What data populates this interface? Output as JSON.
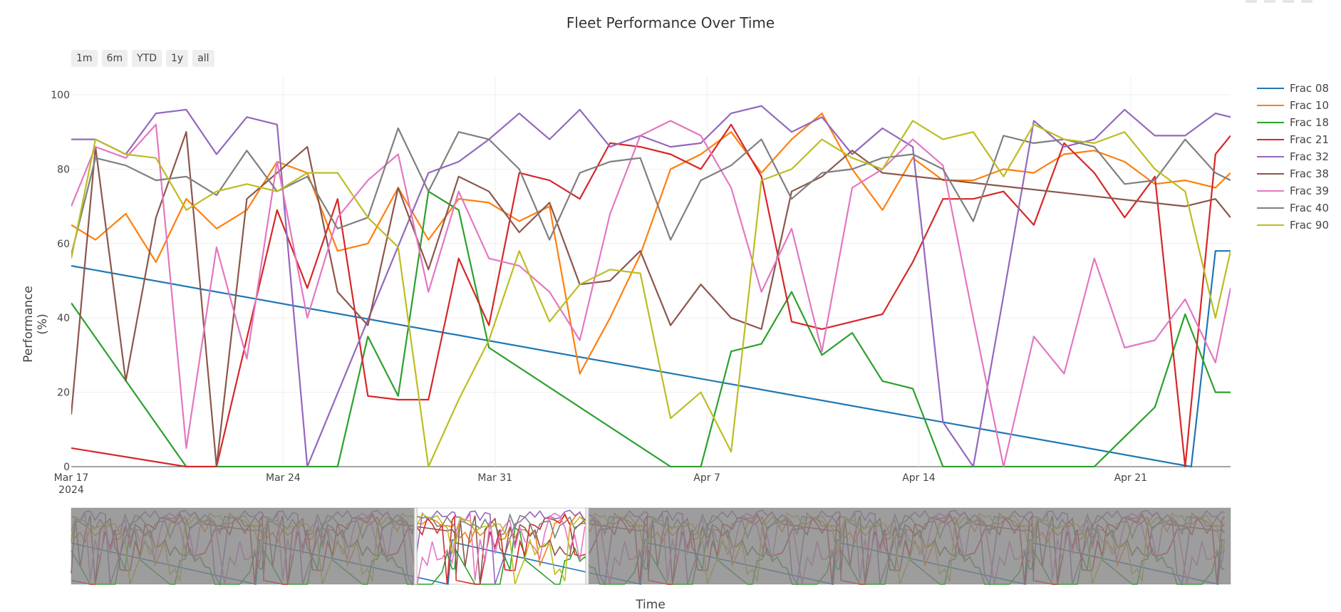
{
  "chart_data": {
    "type": "line",
    "title": "Fleet Performance Over Time",
    "xlabel": "Time",
    "ylabel": "Performance (%)",
    "ylim": [
      0,
      100
    ],
    "y_ticks": [
      "0",
      "20",
      "40",
      "60",
      "80",
      "100"
    ],
    "x_ticks": [
      "Mar 17",
      "Mar 24",
      "Mar 31",
      "Apr 7",
      "Apr 14",
      "Apr 21"
    ],
    "x_year_label": "2024",
    "x_range_days": [
      0,
      38.3
    ],
    "range_buttons": [
      "1m",
      "6m",
      "YTD",
      "1y",
      "all"
    ],
    "grid": true,
    "legend_position": "right",
    "series": [
      {
        "name": "Frac 08",
        "color": "#1f77b4",
        "x": [
          0,
          37,
          37.8,
          38.3
        ],
        "y": [
          54,
          0,
          58,
          58
        ]
      },
      {
        "name": "Frac 10",
        "color": "#ff7f0e",
        "x": [
          0,
          0.8,
          1.8,
          2.8,
          3.8,
          4.8,
          5.8,
          6.8,
          7.8,
          8.8,
          9.8,
          10.8,
          11.8,
          12.8,
          13.8,
          14.8,
          15.8,
          16.8,
          17.8,
          18.8,
          19.8,
          20.8,
          21.8,
          22.8,
          23.8,
          24.8,
          25.8,
          26.8,
          27.8,
          28.8,
          29.8,
          30.8,
          31.8,
          32.8,
          33.8,
          34.8,
          35.8,
          36.8,
          37.8,
          38.3
        ],
        "y": [
          65,
          61,
          68,
          55,
          72,
          64,
          69,
          82,
          79,
          58,
          60,
          75,
          61,
          72,
          71,
          66,
          70,
          25,
          40,
          57,
          80,
          84,
          90,
          79,
          88,
          95,
          80,
          69,
          83,
          77,
          77,
          80,
          79,
          84,
          85,
          82,
          76,
          77,
          75,
          79
        ]
      },
      {
        "name": "Frac 18",
        "color": "#2ca02c",
        "x": [
          0,
          3.8,
          7.8,
          8.8,
          9.8,
          10.8,
          11.8,
          12.8,
          13.8,
          19.8,
          20.8,
          21.8,
          22.8,
          23.8,
          24.8,
          25.8,
          26.8,
          27.8,
          28.8,
          33.8,
          34.8,
          35.8,
          36.8,
          37.8,
          38.3
        ],
        "y": [
          44,
          0,
          0,
          0,
          35,
          19,
          74,
          69,
          32,
          0,
          0,
          31,
          33,
          47,
          30,
          36,
          23,
          21,
          0,
          0,
          8,
          16,
          41,
          20,
          20
        ]
      },
      {
        "name": "Frac 21",
        "color": "#d62728",
        "x": [
          0,
          3.8,
          4.8,
          6.8,
          7.8,
          8.8,
          9.8,
          10.8,
          11.8,
          12.8,
          13.8,
          14.8,
          15.8,
          16.8,
          17.8,
          18.8,
          19.8,
          20.8,
          21.8,
          22.8,
          23.8,
          24.8,
          25.8,
          26.8,
          27.8,
          28.8,
          29.8,
          30.8,
          31.8,
          32.8,
          33.8,
          34.8,
          35.8,
          36.8,
          37.8,
          38.3
        ],
        "y": [
          5,
          0,
          0,
          69,
          48,
          72,
          19,
          18,
          18,
          56,
          38,
          79,
          77,
          72,
          87,
          86,
          84,
          80,
          92,
          78,
          39,
          37,
          39,
          41,
          55,
          72,
          72,
          74,
          65,
          87,
          79,
          67,
          78,
          0,
          84,
          89
        ]
      },
      {
        "name": "Frac 32",
        "color": "#9467bd",
        "x": [
          0,
          0.8,
          1.8,
          2.8,
          3.8,
          4.8,
          5.8,
          6.8,
          7.8,
          11.8,
          12.8,
          13.8,
          14.8,
          15.8,
          16.8,
          17.8,
          18.8,
          19.8,
          20.8,
          21.8,
          22.8,
          23.8,
          24.8,
          25.8,
          26.8,
          27.8,
          28.8,
          29.8,
          30.8,
          31.8,
          32.8,
          33.8,
          34.8,
          35.8,
          36.8,
          37.8,
          38.3
        ],
        "y": [
          88,
          88,
          84,
          95,
          96,
          84,
          94,
          92,
          0,
          79,
          82,
          88,
          95,
          88,
          96,
          86,
          89,
          86,
          87,
          95,
          97,
          90,
          94,
          84,
          91,
          86,
          12,
          0,
          46,
          93,
          86,
          88,
          96,
          89,
          89,
          95,
          94
        ]
      },
      {
        "name": "Frac 38",
        "color": "#8c564b",
        "x": [
          0,
          0.8,
          1.8,
          2.8,
          3.8,
          4.8,
          5.8,
          6.8,
          7.8,
          8.8,
          9.8,
          10.8,
          11.8,
          12.8,
          13.8,
          14.8,
          15.8,
          16.8,
          17.8,
          18.8,
          19.8,
          20.8,
          21.8,
          22.8,
          23.8,
          24.8,
          25.8,
          26.8,
          36.8,
          37.8,
          38.3
        ],
        "y": [
          14,
          86,
          23,
          67,
          90,
          0,
          72,
          79,
          86,
          47,
          38,
          75,
          53,
          78,
          74,
          63,
          71,
          49,
          50,
          58,
          38,
          49,
          40,
          37,
          74,
          78,
          85,
          79,
          70,
          72,
          67
        ]
      },
      {
        "name": "Frac 39",
        "color": "#e377c2",
        "x": [
          0,
          0.8,
          1.8,
          2.8,
          3.8,
          4.8,
          5.8,
          6.8,
          7.8,
          8.8,
          9.8,
          10.8,
          11.8,
          12.8,
          13.8,
          14.8,
          15.8,
          16.8,
          17.8,
          18.8,
          19.8,
          20.8,
          21.8,
          22.8,
          23.8,
          24.8,
          25.8,
          26.8,
          27.8,
          28.8,
          29.8,
          30.8,
          31.8,
          32.8,
          33.8,
          34.8,
          35.8,
          36.8,
          37.8,
          38.3
        ],
        "y": [
          70,
          86,
          83,
          92,
          5,
          59,
          29,
          82,
          40,
          67,
          77,
          84,
          47,
          74,
          56,
          54,
          47,
          34,
          68,
          89,
          93,
          89,
          75,
          47,
          64,
          31,
          75,
          80,
          88,
          81,
          40,
          0,
          35,
          25,
          56,
          32,
          34,
          45,
          28,
          48
        ]
      },
      {
        "name": "Frac 40",
        "color": "#7f7f7f",
        "x": [
          0,
          0.8,
          1.8,
          2.8,
          3.8,
          4.8,
          5.8,
          6.8,
          7.8,
          8.8,
          9.8,
          10.8,
          11.8,
          12.8,
          13.8,
          14.8,
          15.8,
          16.8,
          17.8,
          18.8,
          19.8,
          20.8,
          21.8,
          22.8,
          23.8,
          24.8,
          25.8,
          26.8,
          27.8,
          28.8,
          29.8,
          30.8,
          31.8,
          32.8,
          33.8,
          34.8,
          35.8,
          36.8,
          37.8,
          38.3
        ],
        "y": [
          57,
          83,
          81,
          77,
          78,
          73,
          85,
          74,
          78,
          64,
          67,
          91,
          74,
          90,
          88,
          80,
          61,
          79,
          82,
          83,
          61,
          77,
          81,
          88,
          72,
          79,
          80,
          83,
          84,
          80,
          66,
          89,
          87,
          88,
          86,
          76,
          77,
          88,
          79,
          77
        ]
      },
      {
        "name": "Frac 90",
        "color": "#bcbd22",
        "x": [
          0,
          0.8,
          1.8,
          2.8,
          3.8,
          4.8,
          5.8,
          6.8,
          7.8,
          8.8,
          9.8,
          10.8,
          11.8,
          12.8,
          13.8,
          14.8,
          15.8,
          16.8,
          17.8,
          18.8,
          19.8,
          20.8,
          21.8,
          22.8,
          23.8,
          24.8,
          25.8,
          26.8,
          27.8,
          28.8,
          29.8,
          30.8,
          31.8,
          32.8,
          33.8,
          34.8,
          35.8,
          36.8,
          37.8,
          38.3
        ],
        "y": [
          56,
          88,
          84,
          83,
          69,
          74,
          76,
          74,
          79,
          79,
          67,
          59,
          0,
          18,
          34,
          58,
          39,
          49,
          53,
          52,
          13,
          20,
          4,
          77,
          80,
          88,
          83,
          80,
          93,
          88,
          90,
          78,
          92,
          88,
          87,
          90,
          80,
          74,
          40,
          58
        ]
      }
    ]
  }
}
